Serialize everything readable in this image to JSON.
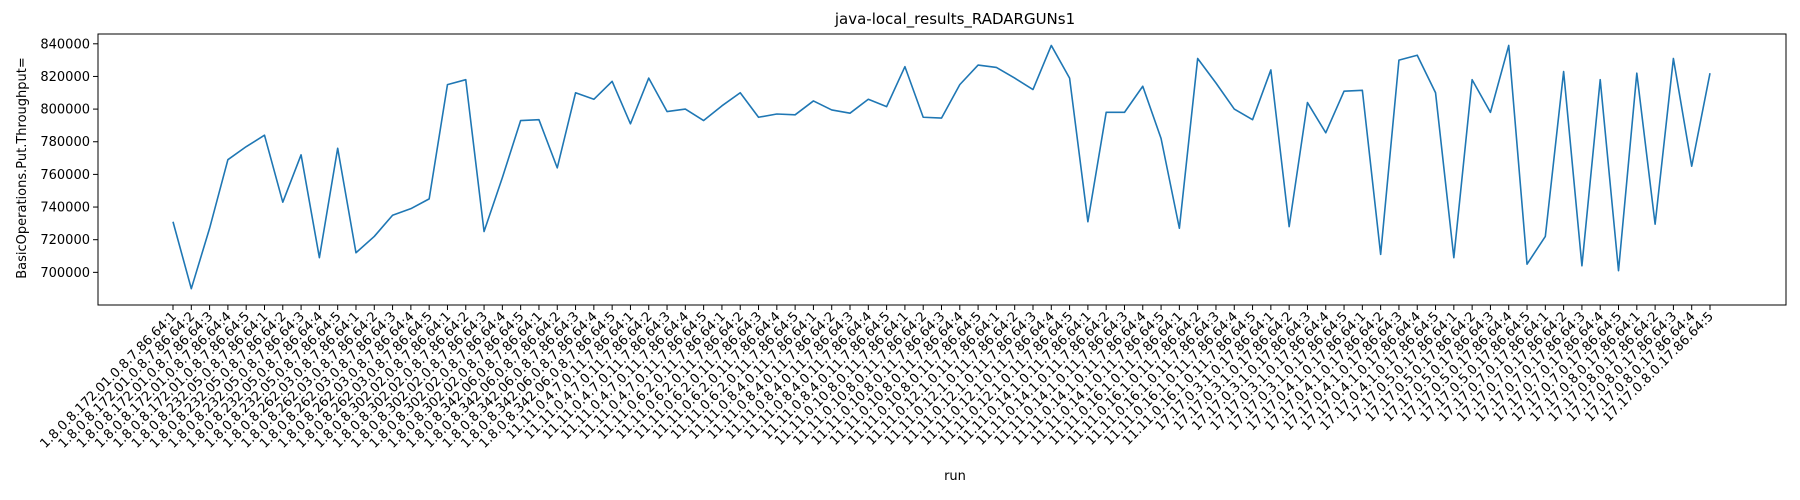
{
  "chart_data": {
    "type": "line",
    "title": "java-local_results_RADARGUNs1",
    "xlabel": "run",
    "ylabel": "BasicOperations.Put.Throughput=",
    "ylim": [
      680000,
      846000
    ],
    "yticks": [
      700000,
      720000,
      740000,
      760000,
      780000,
      800000,
      820000,
      840000
    ],
    "grid": false,
    "legend": "none",
    "line_color": "#1f77b4",
    "categories": [
      "1.8.0.8.172.01.0.8.7.86.64:1",
      "1.8.0.8.172.01.0.8.7.86.64:2",
      "1.8.0.8.172.01.0.8.7.86.64:3",
      "1.8.0.8.172.01.0.8.7.86.64:4",
      "1.8.0.8.172.01.0.8.7.86.64:5",
      "1.8.0.8.232.05.0.8.7.86.64:1",
      "1.8.0.8.232.05.0.8.7.86.64:2",
      "1.8.0.8.232.05.0.8.7.86.64:3",
      "1.8.0.8.232.05.0.8.7.86.64:4",
      "1.8.0.8.232.05.0.8.7.86.64:5",
      "1.8.0.8.262.03.0.8.7.86.64:1",
      "1.8.0.8.262.03.0.8.7.86.64:2",
      "1.8.0.8.262.03.0.8.7.86.64:3",
      "1.8.0.8.262.03.0.8.7.86.64:4",
      "1.8.0.8.262.03.0.8.7.86.64:5",
      "1.8.0.8.302.02.0.8.7.86.64:1",
      "1.8.0.8.302.02.0.8.7.86.64:2",
      "1.8.0.8.302.02.0.8.7.86.64:3",
      "1.8.0.8.302.02.0.8.7.86.64:4",
      "1.8.0.8.302.02.0.8.7.86.64:5",
      "1.8.0.8.342.06.0.8.7.86.64:1",
      "1.8.0.8.342.06.0.8.7.86.64:2",
      "1.8.0.8.342.06.0.8.7.86.64:3",
      "1.8.0.8.342.06.0.8.7.86.64:4",
      "1.8.0.8.342.06.0.8.7.86.64:5",
      "11.11.0.4.7.0.11.7.86.64:1",
      "11.11.0.4.7.0.11.7.86.64:2",
      "11.11.0.4.7.0.11.7.86.64:3",
      "11.11.0.4.7.0.11.7.86.64:4",
      "11.11.0.4.7.0.11.7.86.64:5",
      "11.11.0.6.2.0.11.7.86.64:1",
      "11.11.0.6.2.0.11.7.86.64:2",
      "11.11.0.6.2.0.11.7.86.64:3",
      "11.11.0.6.2.0.11.7.86.64:4",
      "11.11.0.6.2.0.11.7.86.64:5",
      "11.11.0.8.4.0.11.7.86.64:1",
      "11.11.0.8.4.0.11.7.86.64:2",
      "11.11.0.8.4.0.11.7.86.64:3",
      "11.11.0.8.4.0.11.7.86.64:4",
      "11.11.0.8.4.0.11.7.86.64:5",
      "11.11.0.10.8.0.11.7.86.64:1",
      "11.11.0.10.8.0.11.7.86.64:2",
      "11.11.0.10.8.0.11.7.86.64:3",
      "11.11.0.10.8.0.11.7.86.64:4",
      "11.11.0.10.8.0.11.7.86.64:5",
      "11.11.0.12.1.0.11.7.86.64:1",
      "11.11.0.12.1.0.11.7.86.64:2",
      "11.11.0.12.1.0.11.7.86.64:3",
      "11.11.0.12.1.0.11.7.86.64:4",
      "11.11.0.12.1.0.11.7.86.64:5",
      "11.11.0.14.1.0.11.7.86.64:1",
      "11.11.0.14.1.0.11.7.86.64:2",
      "11.11.0.14.1.0.11.7.86.64:3",
      "11.11.0.14.1.0.11.7.86.64:4",
      "11.11.0.14.1.0.11.7.86.64:5",
      "11.11.0.16.1.0.11.7.86.64:1",
      "11.11.0.16.1.0.11.7.86.64:2",
      "11.11.0.16.1.0.11.7.86.64:3",
      "11.11.0.16.1.0.11.7.86.64:4",
      "11.11.0.16.1.0.11.7.86.64:5",
      "17.17.0.3.1.0.17.86.64:1",
      "17.17.0.3.1.0.17.86.64:2",
      "17.17.0.3.1.0.17.86.64:3",
      "17.17.0.3.1.0.17.86.64:4",
      "17.17.0.3.1.0.17.86.64:5",
      "17.17.0.4.1.0.17.86.64:1",
      "17.17.0.4.1.0.17.86.64:2",
      "17.17.0.4.1.0.17.86.64:3",
      "17.17.0.4.1.0.17.86.64:4",
      "17.17.0.4.1.0.17.86.64:5",
      "17.17.0.5.0.17.86.64:1",
      "17.17.0.5.0.17.86.64:2",
      "17.17.0.5.0.17.86.64:3",
      "17.17.0.5.0.17.86.64:4",
      "17.17.0.5.0.17.86.64:5",
      "17.17.0.7.0.17.86.64:1",
      "17.17.0.7.0.17.86.64:2",
      "17.17.0.7.0.17.86.64:3",
      "17.17.0.7.0.17.86.64:4",
      "17.17.0.7.0.17.86.64:5",
      "17.17.0.8.0.17.86.64:1",
      "17.17.0.8.0.17.86.64:2",
      "17.17.0.8.0.17.86.64:3",
      "17.17.0.8.0.17.86.64:4",
      "17.17.0.8.0.17.86.64:5"
    ],
    "values": [
      731000,
      690000,
      727000,
      769000,
      777000,
      784000,
      743000,
      772000,
      709000,
      776000,
      712000,
      722000,
      735000,
      739000,
      745000,
      815000,
      818000,
      725000,
      758000,
      793000,
      793500,
      764000,
      810000,
      806000,
      817000,
      791000,
      819000,
      798500,
      800000,
      793000,
      802000,
      810000,
      795000,
      797000,
      796500,
      805000,
      799500,
      797500,
      806000,
      801500,
      826000,
      795000,
      794500,
      815000,
      827000,
      825500,
      819000,
      812000,
      839000,
      819000,
      731000,
      798000,
      798000,
      814000,
      782000,
      727000,
      831000,
      816000,
      800000,
      793500,
      824000,
      728000,
      804000,
      785500,
      811000,
      811500,
      711000,
      830000,
      833000,
      810000,
      709000,
      818000,
      798000,
      839000,
      705000,
      722000,
      823000,
      704000,
      818000,
      701000,
      822000,
      729500,
      831000,
      765000,
      822000
    ]
  }
}
